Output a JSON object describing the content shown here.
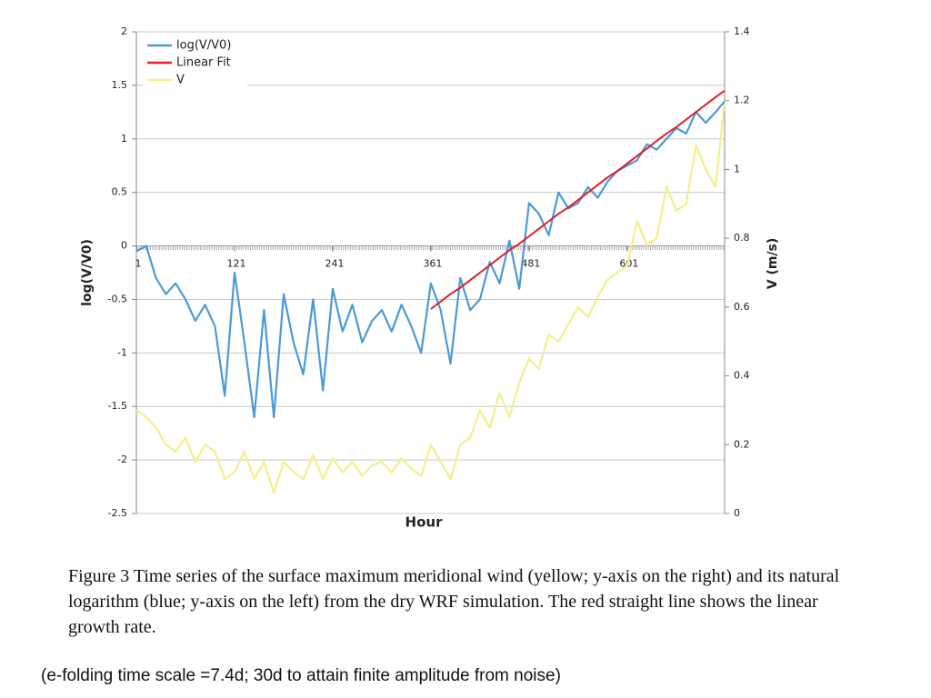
{
  "chart_data": {
    "type": "line",
    "xlabel": "Hour",
    "ylabel": "log(V/V0)",
    "y2label": "V (m/s)",
    "x": [
      1,
      13,
      25,
      37,
      49,
      61,
      73,
      85,
      97,
      109,
      121,
      133,
      145,
      157,
      169,
      181,
      193,
      205,
      217,
      229,
      241,
      253,
      265,
      277,
      289,
      301,
      313,
      325,
      337,
      349,
      361,
      373,
      385,
      397,
      409,
      421,
      433,
      445,
      457,
      469,
      481,
      493,
      505,
      517,
      529,
      541,
      553,
      565,
      577,
      589,
      601,
      613,
      625,
      637,
      649,
      661,
      673,
      685,
      697,
      709,
      720
    ],
    "xlim": [
      1,
      720
    ],
    "xticks": [
      1,
      121,
      241,
      361,
      481,
      601
    ],
    "ylim": [
      -2.5,
      2
    ],
    "yticks": [
      -2.5,
      -2,
      -1.5,
      -1,
      -0.5,
      0,
      0.5,
      1,
      1.5,
      2
    ],
    "y2lim": [
      0,
      1.4
    ],
    "y2ticks": [
      0,
      0.2,
      0.4,
      0.6,
      0.8,
      1,
      1.2,
      1.4
    ],
    "grid": true,
    "legend": "upper left",
    "series": [
      {
        "name": "log(V/V0)",
        "color": "#4b9ad6",
        "values": [
          -0.05,
          0.0,
          -0.3,
          -0.45,
          -0.35,
          -0.5,
          -0.7,
          -0.55,
          -0.75,
          -1.4,
          -0.25,
          -0.9,
          -1.6,
          -0.6,
          -1.6,
          -0.45,
          -0.9,
          -1.2,
          -0.5,
          -1.35,
          -0.4,
          -0.8,
          -0.55,
          -0.9,
          -0.7,
          -0.6,
          -0.8,
          -0.55,
          -0.75,
          -1.0,
          -0.35,
          -0.6,
          -1.1,
          -0.3,
          -0.6,
          -0.5,
          -0.15,
          -0.35,
          0.05,
          -0.4,
          0.4,
          0.3,
          0.1,
          0.5,
          0.35,
          0.4,
          0.55,
          0.45,
          0.6,
          0.7,
          0.75,
          0.8,
          0.95,
          0.9,
          1.0,
          1.1,
          1.05,
          1.25,
          1.15,
          1.25,
          1.35
        ]
      },
      {
        "name": "Linear Fit",
        "color": "#e0202a",
        "values": [
          null,
          null,
          null,
          null,
          null,
          null,
          null,
          null,
          null,
          null,
          null,
          null,
          null,
          null,
          null,
          null,
          null,
          null,
          null,
          null,
          null,
          null,
          null,
          null,
          null,
          null,
          null,
          null,
          null,
          null,
          -0.59,
          -0.52,
          -0.45,
          -0.39,
          -0.32,
          -0.25,
          -0.18,
          -0.11,
          -0.04,
          0.02,
          0.09,
          0.16,
          0.23,
          0.3,
          0.36,
          0.43,
          0.5,
          0.57,
          0.64,
          0.7,
          0.77,
          0.84,
          0.91,
          0.98,
          1.05,
          1.11,
          1.18,
          1.25,
          1.32,
          1.39,
          1.45
        ]
      },
      {
        "name": "V",
        "color": "#f3ef8c",
        "axis": "y2",
        "values": [
          0.3,
          0.28,
          0.25,
          0.2,
          0.18,
          0.22,
          0.15,
          0.2,
          0.18,
          0.1,
          0.12,
          0.18,
          0.1,
          0.15,
          0.06,
          0.15,
          0.12,
          0.1,
          0.17,
          0.1,
          0.16,
          0.12,
          0.15,
          0.11,
          0.14,
          0.15,
          0.12,
          0.16,
          0.13,
          0.11,
          0.2,
          0.15,
          0.1,
          0.2,
          0.22,
          0.3,
          0.25,
          0.35,
          0.28,
          0.38,
          0.45,
          0.42,
          0.52,
          0.5,
          0.55,
          0.6,
          0.57,
          0.63,
          0.68,
          0.7,
          0.72,
          0.85,
          0.78,
          0.8,
          0.95,
          0.88,
          0.9,
          1.07,
          1.0,
          0.95,
          1.2
        ]
      }
    ]
  },
  "caption": "Figure 3 Time series of the surface maximum meridional wind (yellow; y-axis on the right) and its natural logarithm (blue; y-axis on the left) from the dry WRF simulation. The red straight line shows the linear growth rate.",
  "note": "(e-folding time scale =7.4d; 30d to attain finite amplitude from noise)"
}
